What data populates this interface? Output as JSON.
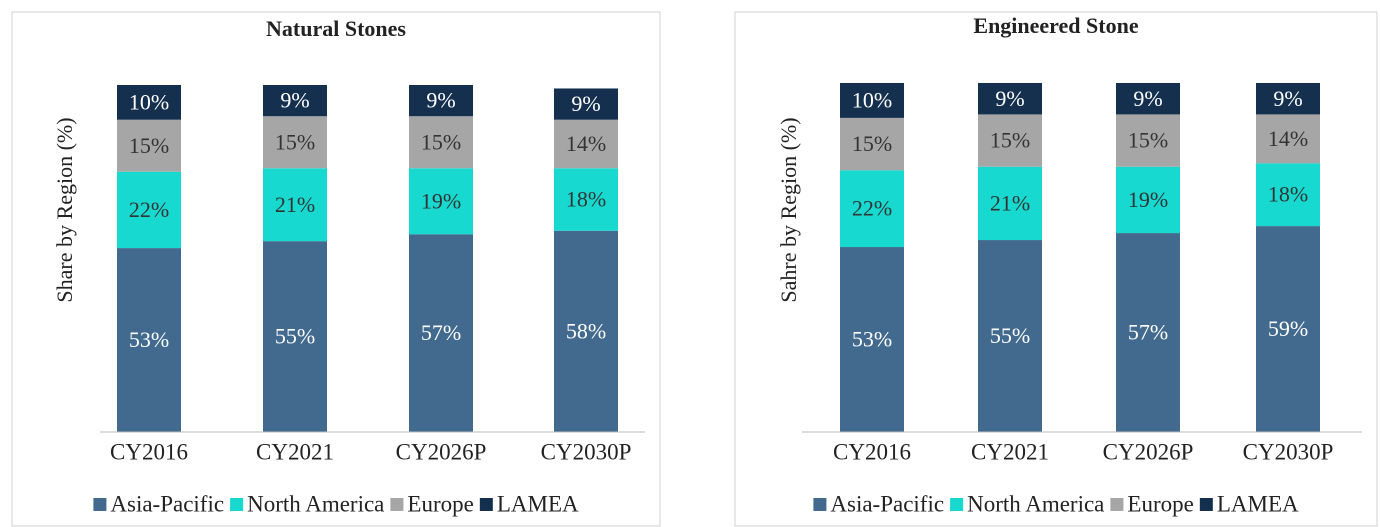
{
  "chart_data": [
    {
      "type": "stacked_bar",
      "title": "Natural Stones",
      "y_label": "Share by Region (%)",
      "categories": [
        "CY2016",
        "CY2021",
        "CY2026P",
        "CY2030P"
      ],
      "ylim": [
        0,
        100
      ],
      "series": [
        {
          "name": "Asia-Pacific",
          "color": "#416a8e",
          "values": [
            53,
            55,
            57,
            58
          ],
          "value_labels": [
            "53%",
            "55%",
            "57%",
            "58%"
          ]
        },
        {
          "name": "North America",
          "color": "#17d9cf",
          "values": [
            22,
            21,
            19,
            18
          ],
          "value_labels": [
            "22%",
            "21%",
            "19%",
            "18%"
          ]
        },
        {
          "name": "Europe",
          "color": "#a6a6a6",
          "values": [
            15,
            15,
            15,
            14
          ],
          "value_labels": [
            "15%",
            "15%",
            "15%",
            "14%"
          ]
        },
        {
          "name": "LAMEA",
          "color": "#15304f",
          "values": [
            10,
            9,
            9,
            9
          ],
          "value_labels": [
            "10%",
            "9%",
            "9%",
            "9%"
          ]
        }
      ]
    },
    {
      "type": "stacked_bar",
      "title": "Engineered Stone",
      "y_label": "Sahre by Region (%)",
      "categories": [
        "CY2016",
        "CY2021",
        "CY2026P",
        "CY2030P"
      ],
      "ylim": [
        0,
        100
      ],
      "series": [
        {
          "name": "Asia-Pacific",
          "color": "#416a8e",
          "values": [
            53,
            55,
            57,
            59
          ],
          "value_labels": [
            "53%",
            "55%",
            "57%",
            "59%"
          ]
        },
        {
          "name": "North America",
          "color": "#17d9cf",
          "values": [
            22,
            21,
            19,
            18
          ],
          "value_labels": [
            "22%",
            "21%",
            "19%",
            "18%"
          ]
        },
        {
          "name": "Europe",
          "color": "#a6a6a6",
          "values": [
            15,
            15,
            15,
            14
          ],
          "value_labels": [
            "15%",
            "15%",
            "15%",
            "14%"
          ]
        },
        {
          "name": "LAMEA",
          "color": "#15304f",
          "values": [
            10,
            9,
            9,
            9
          ],
          "value_labels": [
            "10%",
            "9%",
            "9%",
            "9%"
          ]
        }
      ]
    }
  ]
}
